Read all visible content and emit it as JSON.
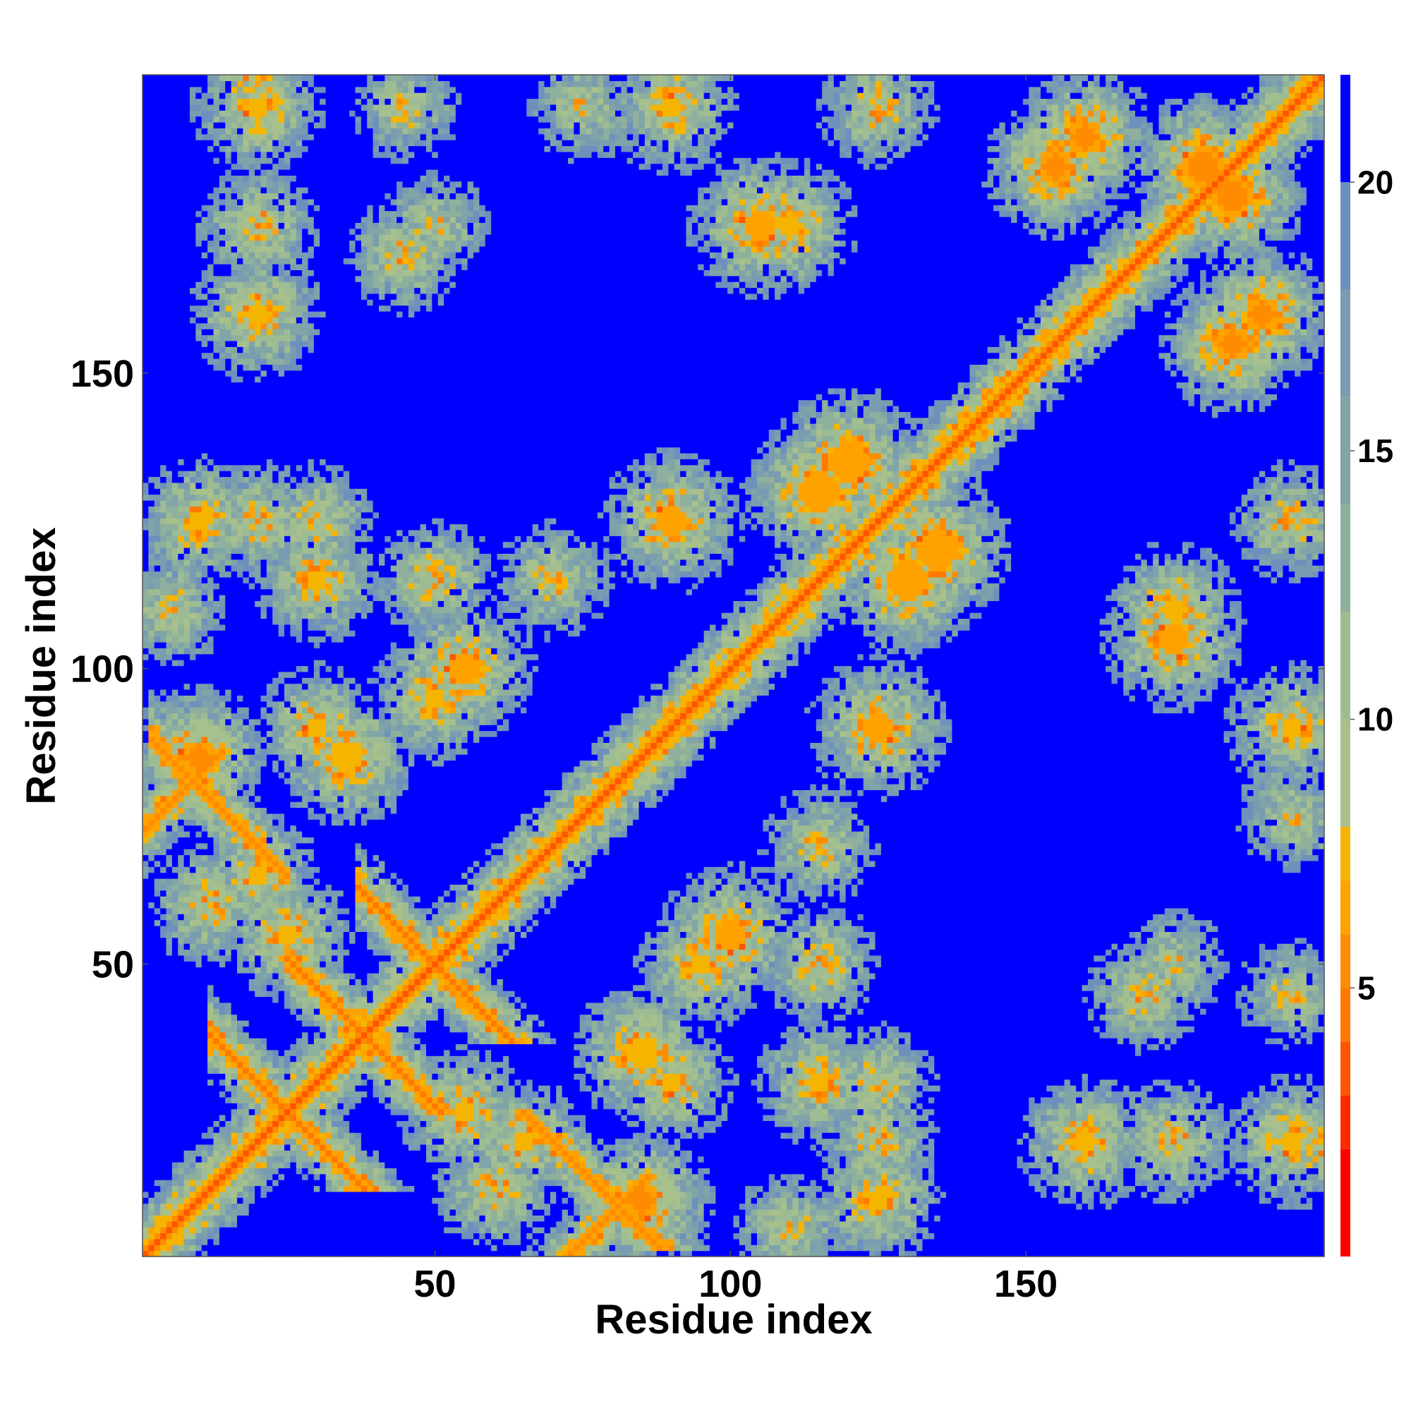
{
  "chart_data": {
    "type": "heatmap",
    "title": "",
    "xlabel": "Residue index",
    "ylabel": "Residue index",
    "n_residues": 200,
    "xlim": [
      1,
      200
    ],
    "ylim": [
      1,
      200
    ],
    "x_ticks": [
      50,
      100,
      150
    ],
    "y_ticks": [
      50,
      100,
      150
    ],
    "colorbar": {
      "ticks": [
        5,
        10,
        15,
        20
      ],
      "range": [
        0,
        22
      ],
      "cap_value": 21,
      "colors": [
        {
          "max": 2,
          "color": "#ff0000"
        },
        {
          "max": 3,
          "color": "#ff2a00"
        },
        {
          "max": 4,
          "color": "#ff5500"
        },
        {
          "max": 5,
          "color": "#ff7800"
        },
        {
          "max": 6,
          "color": "#ff8c00"
        },
        {
          "max": 7,
          "color": "#ffa200"
        },
        {
          "max": 8,
          "color": "#f5b400"
        },
        {
          "max": 10,
          "color": "#a8c08c"
        },
        {
          "max": 12,
          "color": "#9ebc94"
        },
        {
          "max": 14,
          "color": "#8eb09c"
        },
        {
          "max": 16,
          "color": "#80a4a8"
        },
        {
          "max": 18,
          "color": "#7a9cb0"
        },
        {
          "max": 20,
          "color": "#6e90bc"
        },
        {
          "max": 99,
          "color": "#0000ff"
        }
      ]
    },
    "diagonal_contact_distance": 3.8,
    "contact_regions": [
      {
        "type": "antiparallel",
        "sum": 50,
        "from": 15,
        "to": 35,
        "width": 1.2,
        "min": 4.5
      },
      {
        "type": "antiparallel",
        "sum": 76,
        "from": 28,
        "to": 48,
        "width": 1.2,
        "min": 4.5
      },
      {
        "type": "antiparallel",
        "sum": 100,
        "from": 40,
        "to": 60,
        "width": 1.2,
        "min": 4.5
      },
      {
        "type": "antiparallel",
        "sum": 90,
        "from": 5,
        "to": 22,
        "width": 1.2,
        "min": 5
      },
      {
        "type": "parallel",
        "offset": 72,
        "from": 3,
        "to": 12,
        "width": 1.0,
        "min": 5
      },
      {
        "type": "antiparallel",
        "sum": 96,
        "from": 70,
        "to": 80,
        "width": 1.0,
        "min": 5.5
      },
      {
        "type": "blob",
        "x": 180,
        "y": 185,
        "r": 6,
        "min": 5
      },
      {
        "type": "blob",
        "x": 160,
        "y": 190,
        "r": 5,
        "min": 5
      },
      {
        "type": "blob",
        "x": 185,
        "y": 155,
        "r": 6,
        "min": 5.5
      },
      {
        "type": "blob",
        "x": 120,
        "y": 135,
        "r": 9,
        "min": 6
      },
      {
        "type": "blob",
        "x": 90,
        "y": 125,
        "r": 8,
        "min": 6.5
      },
      {
        "type": "blob",
        "x": 130,
        "y": 115,
        "r": 9,
        "min": 6
      },
      {
        "type": "blob",
        "x": 125,
        "y": 90,
        "r": 8,
        "min": 6.5
      },
      {
        "type": "blob",
        "x": 105,
        "y": 175,
        "r": 7,
        "min": 6
      },
      {
        "type": "blob",
        "x": 20,
        "y": 175,
        "r": 6,
        "min": 8
      },
      {
        "type": "blob",
        "x": 20,
        "y": 200,
        "r": 6,
        "min": 8
      },
      {
        "type": "blob",
        "x": 20,
        "y": 125,
        "r": 5,
        "min": 8
      },
      {
        "type": "blob",
        "x": 30,
        "y": 125,
        "r": 4,
        "min": 8
      },
      {
        "type": "blob",
        "x": 50,
        "y": 175,
        "r": 4,
        "min": 9
      },
      {
        "type": "blob",
        "x": 90,
        "y": 195,
        "r": 6,
        "min": 7
      },
      {
        "type": "blob",
        "x": 70,
        "y": 115,
        "r": 6,
        "min": 9
      },
      {
        "type": "blob",
        "x": 50,
        "y": 115,
        "r": 6,
        "min": 8
      },
      {
        "type": "blob",
        "x": 115,
        "y": 30,
        "r": 5,
        "min": 7
      },
      {
        "type": "blob",
        "x": 125,
        "y": 10,
        "r": 5,
        "min": 7
      },
      {
        "type": "blob",
        "x": 160,
        "y": 20,
        "r": 7,
        "min": 7
      },
      {
        "type": "blob",
        "x": 195,
        "y": 20,
        "r": 6,
        "min": 7
      },
      {
        "type": "blob",
        "x": 195,
        "y": 45,
        "r": 4,
        "min": 9
      },
      {
        "type": "blob",
        "x": 170,
        "y": 45,
        "r": 4,
        "min": 8
      },
      {
        "type": "blob",
        "x": 195,
        "y": 125,
        "r": 5,
        "min": 8
      },
      {
        "type": "blob",
        "x": 175,
        "y": 110,
        "r": 7,
        "min": 7
      },
      {
        "type": "blob",
        "x": 195,
        "y": 75,
        "r": 4,
        "min": 9
      },
      {
        "type": "blob",
        "x": 100,
        "y": 55,
        "r": 7,
        "min": 6
      },
      {
        "type": "blob",
        "x": 85,
        "y": 35,
        "r": 8,
        "min": 7
      },
      {
        "type": "blob",
        "x": 55,
        "y": 25,
        "r": 6,
        "min": 7
      },
      {
        "type": "blob",
        "x": 50,
        "y": 95,
        "r": 6,
        "min": 7
      },
      {
        "type": "blob",
        "x": 30,
        "y": 90,
        "r": 5,
        "min": 7
      },
      {
        "type": "blob",
        "x": 10,
        "y": 85,
        "r": 5,
        "min": 5
      },
      {
        "type": "blob",
        "x": 5,
        "y": 110,
        "r": 6,
        "min": 9
      },
      {
        "type": "blob",
        "x": 12,
        "y": 60,
        "r": 6,
        "min": 8
      },
      {
        "type": "blob",
        "x": 65,
        "y": 20,
        "r": 5,
        "min": 7
      }
    ]
  }
}
